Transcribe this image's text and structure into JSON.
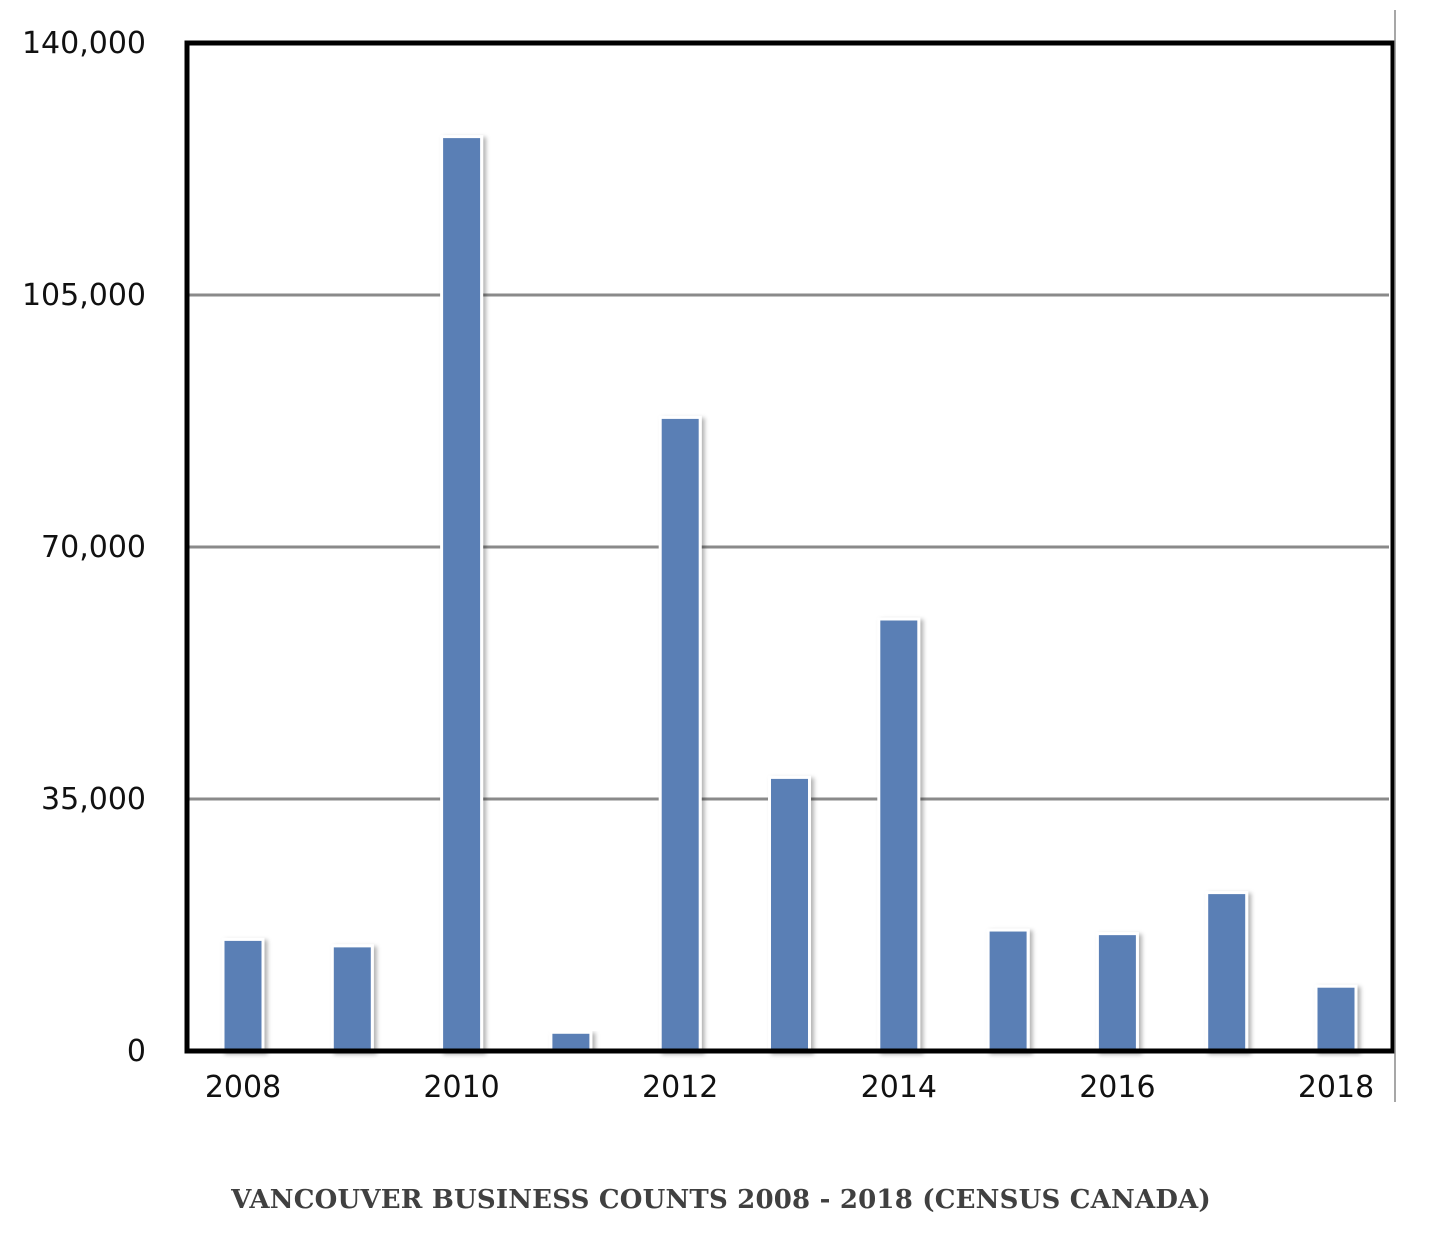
{
  "chart_data": {
    "type": "bar",
    "title": "VANCOUVER BUSINESS COUNTS 2008 - 2018 (CENSUS CANADA)",
    "xlabel": "",
    "ylabel": "",
    "categories": [
      "2008",
      "2009",
      "2010",
      "2011",
      "2012",
      "2013",
      "2014",
      "2015",
      "2016",
      "2017",
      "2018"
    ],
    "x_tick_labels": [
      "2008",
      "",
      "2010",
      "",
      "2012",
      "",
      "2014",
      "",
      "2016",
      "",
      "2018"
    ],
    "values": [
      15500,
      14600,
      127000,
      2600,
      88000,
      38000,
      60000,
      16800,
      16300,
      22000,
      9000
    ],
    "ylim": [
      0,
      140000
    ],
    "yticks": [
      0,
      35000,
      70000,
      105000,
      140000
    ],
    "ytick_labels": [
      "0",
      "35,000",
      "70,000",
      "105,000",
      "140,000"
    ],
    "grid": true,
    "legend": "none",
    "colors": {
      "bar": "#5a7fb5",
      "bar_edge": "#ffffff",
      "gridline": "#8a8a8a",
      "frame": "#000000"
    }
  }
}
